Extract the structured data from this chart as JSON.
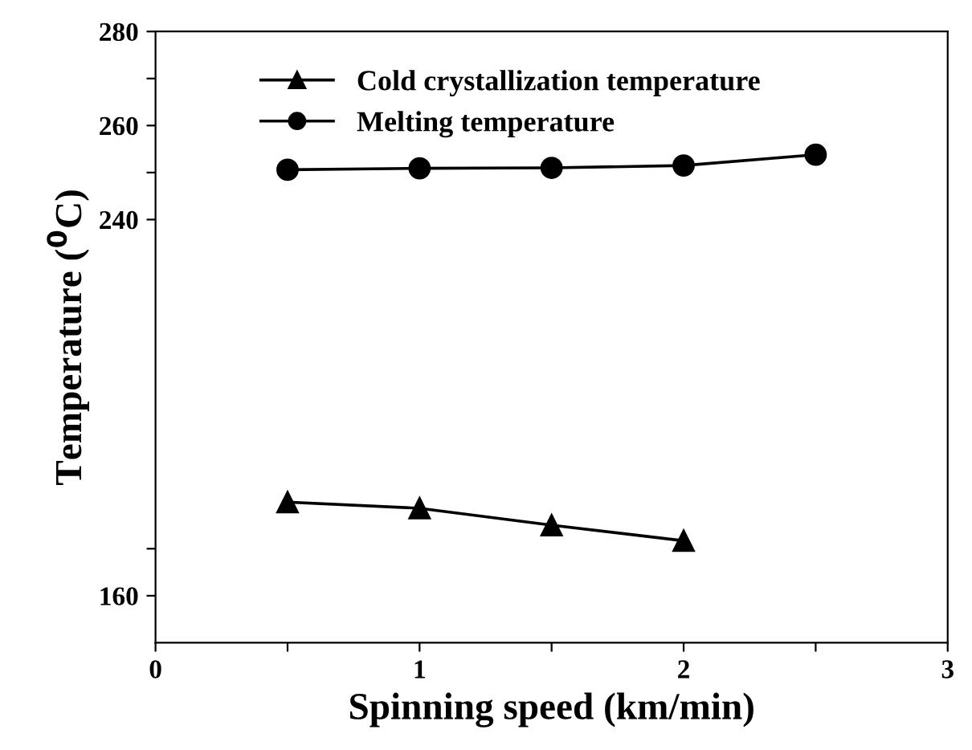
{
  "chart_data": {
    "type": "line",
    "ylabel": "Temperature ($^{0}$C)",
    "xlabel": "Spinning speed (km/min)",
    "series": [
      {
        "name": "Cold crystallization temperature",
        "color": "#000000",
        "marker": "triangle",
        "x": [
          0.5,
          1,
          1.5,
          2
        ],
        "values": [
          179.9,
          178.6,
          175.0,
          171.7
        ]
      },
      {
        "name": "Melting temperature",
        "color": "#000000",
        "marker": "circle",
        "x": [
          0.5,
          1,
          1.5,
          2,
          2.5
        ],
        "values": [
          250.6,
          250.9,
          251.0,
          251.5,
          253.8
        ]
      }
    ],
    "xlim": [
      0,
      3
    ],
    "xticks": [
      0,
      {
        "value": 0.5,
        "label": null
      },
      1,
      {
        "value": 1.5,
        "label": null
      },
      2,
      {
        "value": 2.5,
        "label": null
      },
      3
    ],
    "ylim": [
      150,
      280
    ],
    "yticks": [
      160,
      {
        "value": 170,
        "label": null
      },
      240,
      {
        "value": 250,
        "label": null
      },
      260,
      {
        "value": 270,
        "label": null
      },
      280
    ],
    "legend": "top left",
    "line_style": "solid"
  }
}
